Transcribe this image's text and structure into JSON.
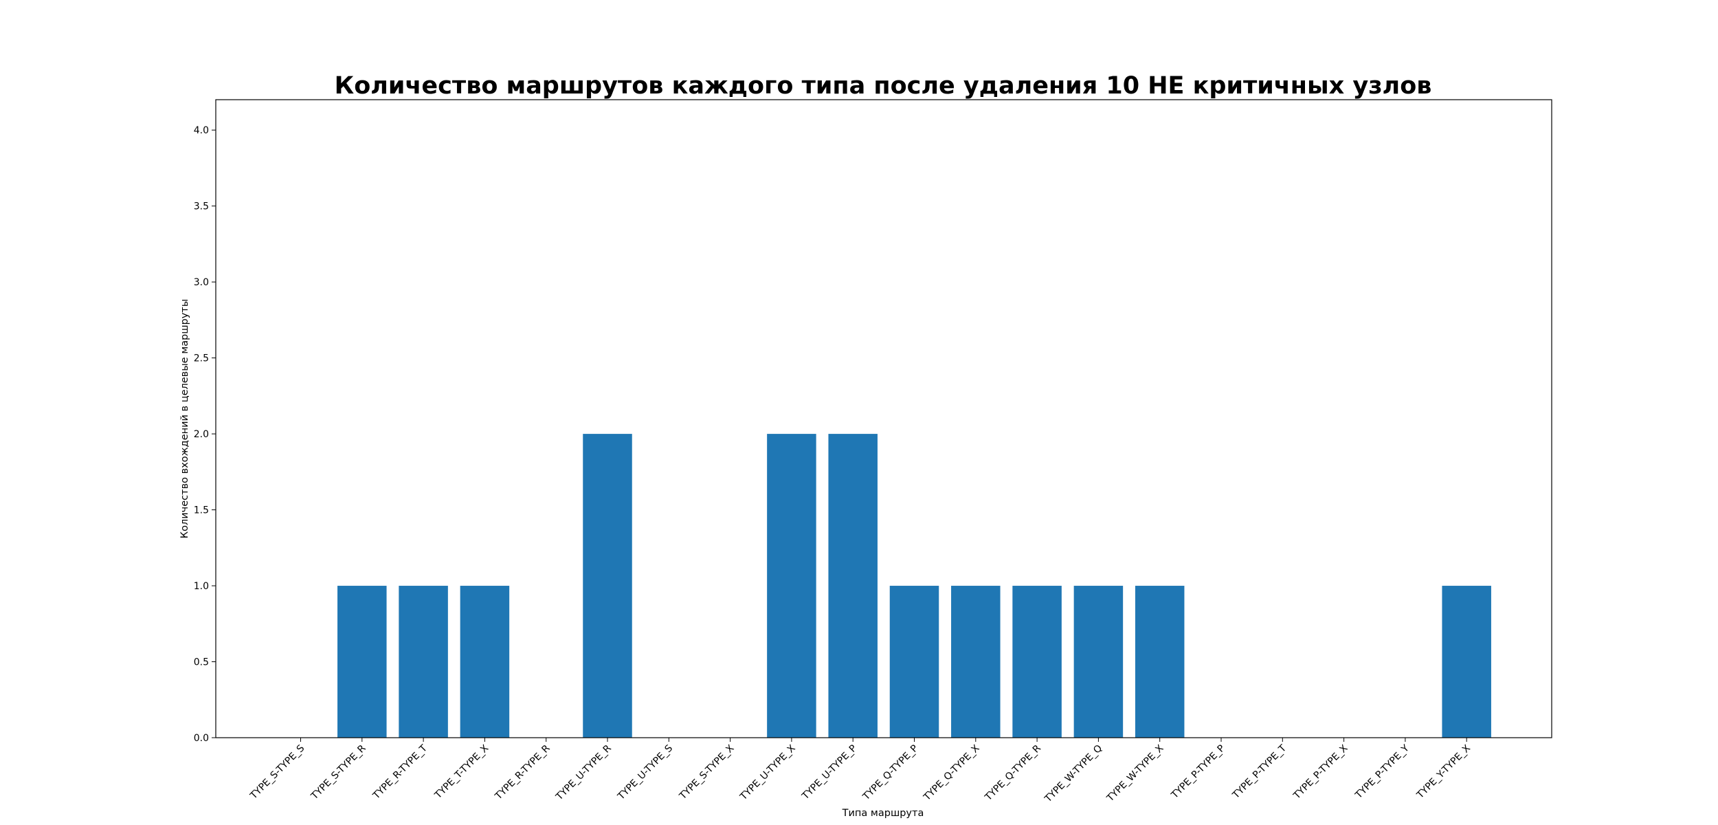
{
  "chart_data": {
    "type": "bar",
    "title": "Количество маршрутов каждого типа после удаления 10 НЕ критичных узлов",
    "xlabel": "Типа маршрута",
    "ylabel": "Количество вхождений в целевые маршруты",
    "ylim": [
      0,
      4.2
    ],
    "yticks": [
      "0.0",
      "0.5",
      "1.0",
      "1.5",
      "2.0",
      "2.5",
      "3.0",
      "3.5",
      "4.0"
    ],
    "categories": [
      "TYPE_S-TYPE_S",
      "TYPE_S-TYPE_R",
      "TYPE_R-TYPE_T",
      "TYPE_T-TYPE_X",
      "TYPE_R-TYPE_R",
      "TYPE_U-TYPE_R",
      "TYPE_U-TYPE_S",
      "TYPE_S-TYPE_X",
      "TYPE_U-TYPE_X",
      "TYPE_U-TYPE_P",
      "TYPE_Q-TYPE_P",
      "TYPE_Q-TYPE_X",
      "TYPE_Q-TYPE_R",
      "TYPE_W-TYPE_Q",
      "TYPE_W-TYPE_X",
      "TYPE_P-TYPE_P",
      "TYPE_P-TYPE_T",
      "TYPE_P-TYPE_X",
      "TYPE_P-TYPE_Y",
      "TYPE_Y-TYPE_X"
    ],
    "values": [
      0,
      1,
      1,
      1,
      0,
      2,
      0,
      0,
      2,
      2,
      1,
      1,
      1,
      1,
      1,
      0,
      0,
      0,
      0,
      1
    ],
    "bar_color": "#1f77b4",
    "grid": false,
    "legend": "none"
  }
}
